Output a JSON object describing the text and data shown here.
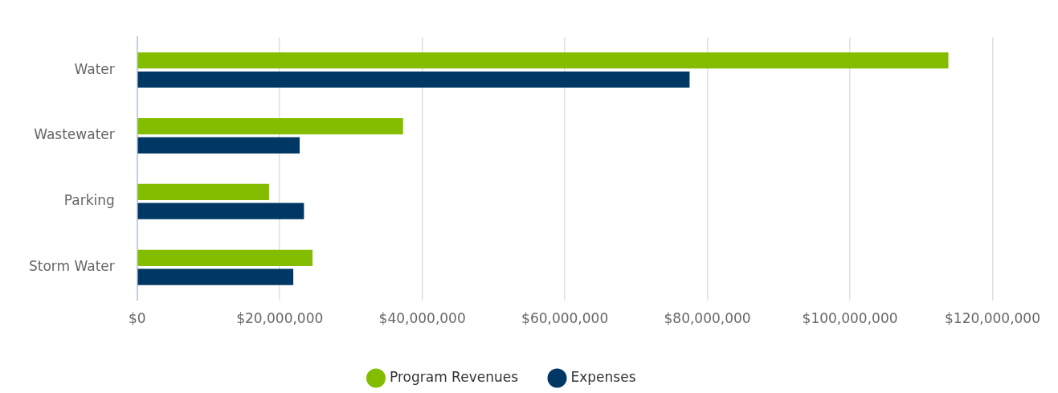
{
  "chart_data": {
    "type": "bar",
    "orientation": "horizontal",
    "categories": [
      "Water",
      "Wastewater",
      "Parking",
      "Storm Water"
    ],
    "series": [
      {
        "name": "Program Revenues",
        "color": "#84bd00",
        "values": [
          113800000,
          37300000,
          18500000,
          24600000
        ]
      },
      {
        "name": "Expenses",
        "color": "#003865",
        "values": [
          77500000,
          22800000,
          23400000,
          21900000
        ]
      }
    ],
    "xlim": [
      0,
      120000000
    ],
    "xticks": [
      {
        "value": 0,
        "label": "$0"
      },
      {
        "value": 20000000,
        "label": "$20,000,000"
      },
      {
        "value": 40000000,
        "label": "$40,000,000"
      },
      {
        "value": 60000000,
        "label": "$60,000,000"
      },
      {
        "value": 80000000,
        "label": "$80,000,000"
      },
      {
        "value": 100000000,
        "label": "$100,000,000"
      },
      {
        "value": 120000000,
        "label": "$120,000,000"
      }
    ],
    "grid": "x",
    "legend": "bottom",
    "marker": "circle"
  }
}
